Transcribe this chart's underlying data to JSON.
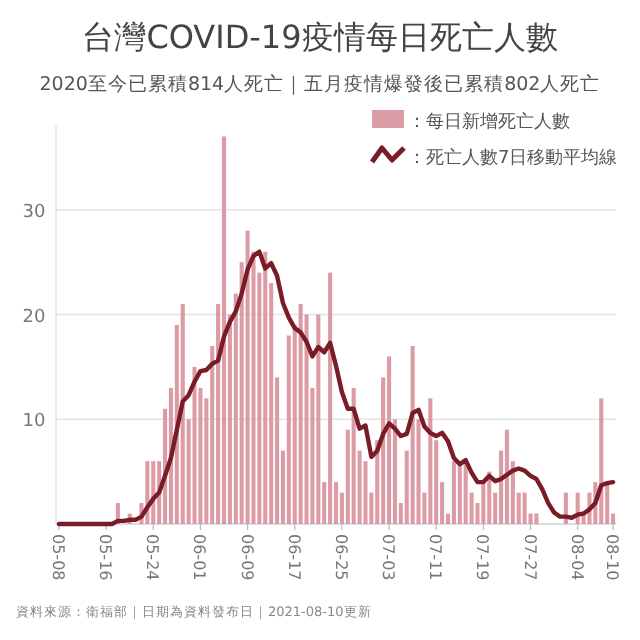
{
  "chart_data": {
    "type": "bar",
    "title": "台灣COVID-19疫情每日死亡人數",
    "subtitle": "2020至今已累積814人死亡｜五月疫情爆發後已累積802人死亡",
    "categories": [
      "05-08",
      null,
      null,
      null,
      null,
      null,
      null,
      null,
      "05-16",
      null,
      null,
      null,
      null,
      null,
      null,
      null,
      "05-24",
      null,
      null,
      null,
      null,
      null,
      null,
      null,
      "06-01",
      null,
      null,
      null,
      null,
      null,
      null,
      null,
      "06-09",
      null,
      null,
      null,
      null,
      null,
      null,
      null,
      "06-17",
      null,
      null,
      null,
      null,
      null,
      null,
      null,
      "06-25",
      null,
      null,
      null,
      null,
      null,
      null,
      null,
      "07-03",
      null,
      null,
      null,
      null,
      null,
      null,
      null,
      "07-11",
      null,
      null,
      null,
      null,
      null,
      null,
      null,
      "07-19",
      null,
      null,
      null,
      null,
      null,
      null,
      null,
      "07-27",
      null,
      null,
      null,
      null,
      null,
      null,
      null,
      "08-04",
      null,
      null,
      null,
      null,
      null,
      "08-10"
    ],
    "series": [
      {
        "name": "：每日新增死亡人數",
        "color": "#dc9ca5",
        "values": [
          0,
          0,
          0,
          0,
          0,
          0,
          0,
          0,
          0,
          0,
          2,
          0,
          1,
          0,
          2,
          6,
          6,
          6,
          11,
          13,
          19,
          21,
          10,
          15,
          13,
          12,
          17,
          21,
          37,
          20,
          22,
          25,
          28,
          26,
          24,
          26,
          23,
          14,
          7,
          18,
          19,
          21,
          20,
          13,
          20,
          4,
          24,
          4,
          3,
          9,
          13,
          7,
          6,
          3,
          8,
          14,
          16,
          10,
          2,
          7,
          17,
          10,
          3,
          12,
          8,
          4,
          1,
          6,
          6,
          6,
          3,
          2,
          4,
          5,
          3,
          7,
          9,
          6,
          3,
          3,
          1,
          1,
          0,
          0,
          0,
          0,
          3,
          0,
          3,
          1,
          3,
          4,
          12,
          4,
          1
        ]
      },
      {
        "name": "：死亡人數7日移動平均線",
        "type": "line",
        "color": "#7a1c27",
        "values": [
          0,
          0,
          0,
          0,
          0,
          0,
          0,
          0,
          0,
          0,
          0.3,
          0.3,
          0.4,
          0.4,
          0.7,
          1.6,
          2.4,
          3.0,
          4.6,
          6.3,
          9.0,
          11.7,
          12.3,
          13.6,
          14.6,
          14.7,
          15.3,
          15.6,
          17.9,
          19.3,
          20.3,
          22.0,
          24.3,
          25.6,
          26.0,
          24.4,
          24.9,
          23.7,
          21.1,
          19.7,
          18.7,
          18.3,
          17.4,
          16.0,
          16.9,
          16.4,
          17.3,
          15.1,
          12.6,
          11.0,
          11.0,
          9.1,
          9.4,
          6.4,
          7.0,
          8.6,
          9.6,
          9.1,
          8.4,
          8.6,
          10.6,
          10.9,
          9.3,
          8.7,
          8.4,
          8.7,
          7.9,
          6.3,
          5.7,
          6.1,
          4.9,
          4.0,
          4.0,
          4.6,
          4.1,
          4.3,
          4.7,
          5.1,
          5.3,
          5.1,
          4.6,
          4.3,
          3.3,
          2.0,
          1.1,
          0.7,
          0.7,
          0.6,
          0.9,
          1.0,
          1.4,
          2.0,
          3.7,
          3.9,
          4.0
        ]
      }
    ],
    "ylim": [
      0,
      38
    ],
    "yticks": [
      10,
      20,
      30
    ],
    "grid": "y",
    "legend": "top right",
    "annotations": [
      "資料來源：衛福部｜日期為資料發布日｜2021-08-10更新"
    ]
  }
}
